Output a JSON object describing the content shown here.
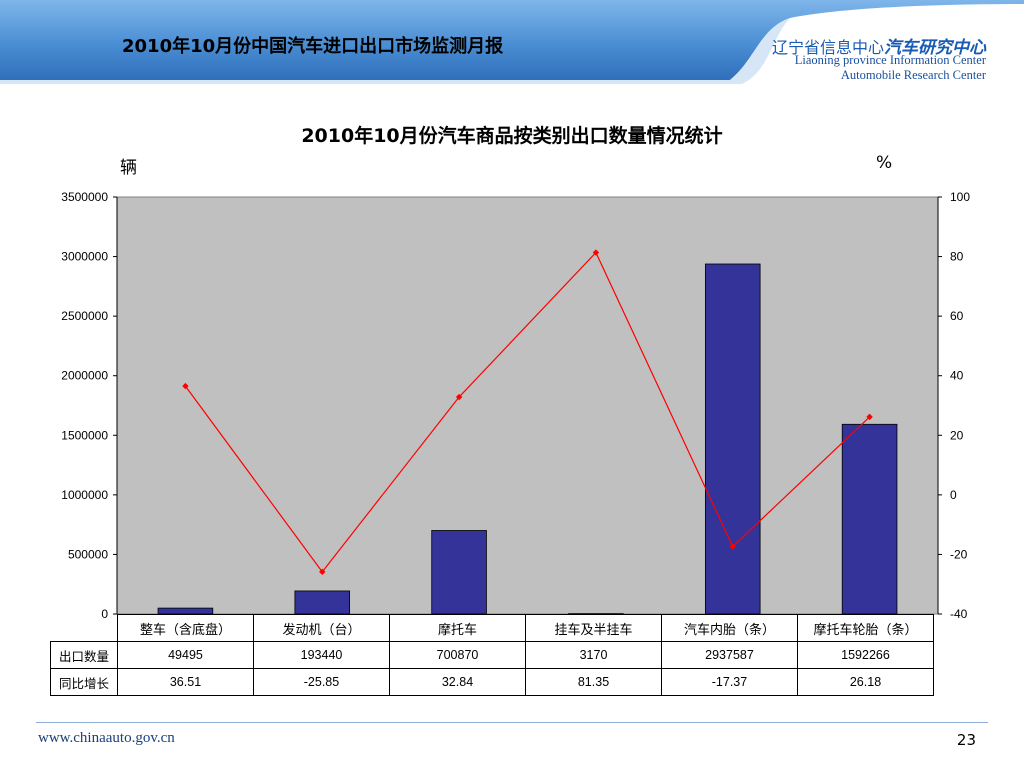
{
  "header": {
    "title": "2010年10月份中国汽车进口出口市场监测月报",
    "brand_cn_prefix": "辽宁省信息中心",
    "brand_cn_strong": "汽车研究中心",
    "brand_en_line1": "Liaoning province Information Center",
    "brand_en_line2": "Automobile Research Center"
  },
  "colors": {
    "bar": "#333399",
    "line": "#ff0000",
    "plot_bg": "#c0c0c0",
    "header_blue": "#4a8ed3"
  },
  "chart_data": {
    "type": "bar",
    "title": "2010年10月份汽车商品按类别出口数量情况统计",
    "ylabel": "辆",
    "y2label": "%",
    "categories": [
      "整车（含底盘）",
      "发动机（台）",
      "摩托车",
      "挂车及半挂车",
      "汽车内胎（条）",
      "摩托车轮胎（条）"
    ],
    "series": [
      {
        "name": "出口数量",
        "kind": "bar",
        "axis": "left",
        "values": [
          49495,
          193440,
          700870,
          3170,
          2937587,
          1592266
        ],
        "display": [
          "49495",
          "193440",
          "700870",
          "3170",
          "2937587",
          "1592266"
        ]
      },
      {
        "name": "同比增长",
        "kind": "line",
        "axis": "right",
        "values": [
          36.51,
          -25.85,
          32.84,
          81.35,
          -17.37,
          26.18
        ],
        "display": [
          "36.51",
          "-25.85",
          "32.84",
          "81.35",
          "-17.37",
          "26.18"
        ]
      }
    ],
    "ylim": [
      0,
      3500000
    ],
    "yticks": [
      "3500000",
      "3000000",
      "2500000",
      "2000000",
      "1500000",
      "1000000",
      "500000",
      "0"
    ],
    "y2lim": [
      -40,
      100
    ],
    "y2ticks": [
      "100",
      "80",
      "60",
      "40",
      "20",
      "0",
      "-20",
      "-40"
    ],
    "grid": false,
    "legend": "data table below chart"
  },
  "footer": {
    "url": "www.chinaauto.gov.cn",
    "page": "23"
  }
}
